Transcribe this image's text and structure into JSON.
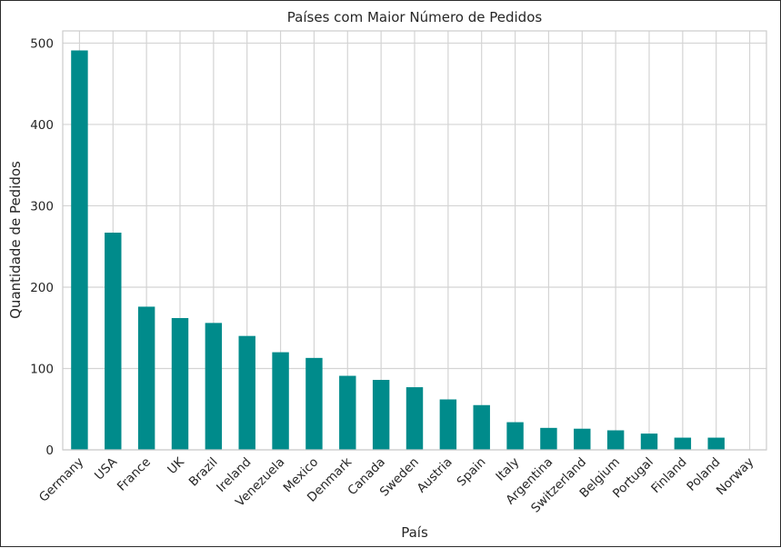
{
  "colors": {
    "bar": "#008b8b",
    "grid": "#d4d4d4",
    "text": "#262626"
  },
  "chart_data": {
    "type": "bar",
    "title": "Países com Maior Número de Pedidos",
    "xlabel": "País",
    "ylabel": "Quantidade de Pedidos",
    "categories": [
      "Germany",
      "USA",
      "France",
      "UK",
      "Brazil",
      "Ireland",
      "Venezuela",
      "Mexico",
      "Denmark",
      "Canada",
      "Sweden",
      "Austria",
      "Spain",
      "Italy",
      "Argentina",
      "Switzerland",
      "Belgium",
      "Portugal",
      "Finland",
      "Poland",
      "Norway"
    ],
    "values": [
      491,
      267,
      176,
      162,
      156,
      140,
      120,
      113,
      91,
      86,
      77,
      62,
      55,
      34,
      27,
      26,
      24,
      20,
      15,
      15,
      0
    ],
    "ylim": [
      0,
      515
    ],
    "yticks": [
      0,
      100,
      200,
      300,
      400,
      500
    ],
    "grid": true,
    "legend": "none"
  }
}
